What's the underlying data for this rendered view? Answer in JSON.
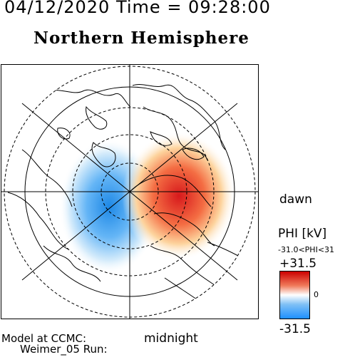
{
  "header": {
    "title": "04/12/2020 Time = 09:28:00",
    "hemisphere": "Northern Hemisphere"
  },
  "map": {
    "dawn_label": "dawn",
    "midnight_label": "midnight",
    "positive_color": "#d7191c",
    "negative_color": "#2b83ba"
  },
  "colorbar": {
    "unit_label": "PHI [kV]",
    "range_label": "-31.0<PHI<31",
    "max_label": "+31.5",
    "zero_label": "0",
    "min_label": "-31.5",
    "top_color": "#cc0000",
    "mid_color": "#ffffff",
    "bottom_color": "#1e90ff"
  },
  "footer": {
    "model_line": "Model at CCMC:",
    "run_line": "Weimer_05 Run:"
  }
}
